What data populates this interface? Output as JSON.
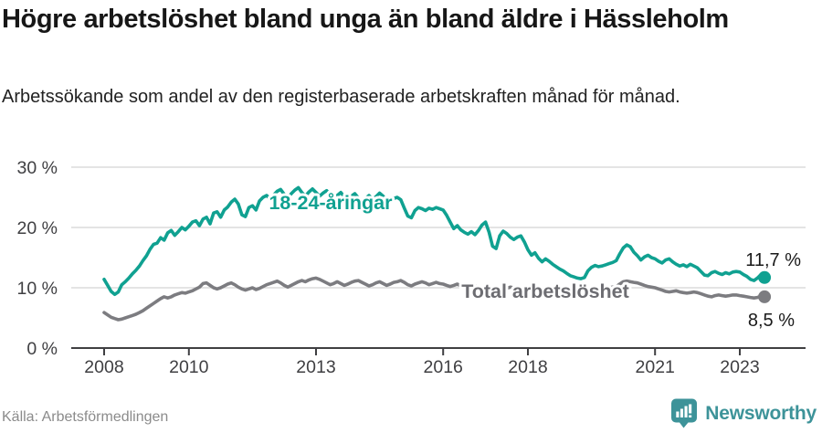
{
  "header": {
    "title": "Högre arbetslöshet bland unga än bland äldre i Hässleholm",
    "subtitle": "Arbetssökande som andel av den registerbaserade arbetskraften månad för månad."
  },
  "footer": {
    "source": "Källa: Arbetsförmedlingen",
    "brand": "Newsworthy"
  },
  "colors": {
    "young_line": "#10a191",
    "total_line": "#7c7c80",
    "total_label": "#6d6d72",
    "grid": "#dcdcdc",
    "axis": "#3f3f42",
    "tick_text": "#3f3f42",
    "end_label_text": "#1a1a1a",
    "brand": "#3d9399"
  },
  "chart_data": {
    "type": "line",
    "title": "Högre arbetslöshet bland unga än bland äldre i Hässleholm",
    "subtitle": "Arbetssökande som andel av den registerbaserade arbetskraften månad för månad.",
    "x_unit": "month",
    "x_start": "2008-01",
    "x_end": "2023-08",
    "x_tick_years": [
      2008,
      2010,
      2013,
      2016,
      2018,
      2021,
      2023
    ],
    "y_ticks": [
      0,
      10,
      20,
      30
    ],
    "y_tick_suffix": " %",
    "ylim": [
      0,
      32
    ],
    "grid": "horizontal",
    "legend_position": "inline-labels",
    "series": [
      {
        "name": "18-24-åringar",
        "color": "#10a191",
        "end_value": 11.7,
        "end_label": "11,7 %",
        "values": [
          11.4,
          10.4,
          9.4,
          8.9,
          9.3,
          10.5,
          11.0,
          11.6,
          12.3,
          12.9,
          13.6,
          14.5,
          15.3,
          16.4,
          17.2,
          17.4,
          18.3,
          17.9,
          19.1,
          19.5,
          18.7,
          19.3,
          20.0,
          19.6,
          20.2,
          20.9,
          21.1,
          20.3,
          21.4,
          21.7,
          20.6,
          22.4,
          22.6,
          21.7,
          22.9,
          23.4,
          24.2,
          24.7,
          23.9,
          22.1,
          21.8,
          23.3,
          23.6,
          22.9,
          24.4,
          25.0,
          25.3,
          24.8,
          25.4,
          26.0,
          26.3,
          25.5,
          24.9,
          25.6,
          26.2,
          26.6,
          25.8,
          25.2,
          25.9,
          26.4,
          25.8,
          25.2,
          25.7,
          26.1,
          25.4,
          24.8,
          25.3,
          25.8,
          25.1,
          24.6,
          25.2,
          25.6,
          24.9,
          24.4,
          24.8,
          25.3,
          24.7,
          25.1,
          25.7,
          25.2,
          24.6,
          24.3,
          24.8,
          25.0,
          24.6,
          23.2,
          21.9,
          21.6,
          22.8,
          23.3,
          23.1,
          22.8,
          23.2,
          23.0,
          23.3,
          23.1,
          22.9,
          22.0,
          20.9,
          19.8,
          20.3,
          19.6,
          19.2,
          18.9,
          19.3,
          18.8,
          19.5,
          20.4,
          20.9,
          19.2,
          16.9,
          16.5,
          18.6,
          19.4,
          19.0,
          18.4,
          18.0,
          18.4,
          18.6,
          17.6,
          16.3,
          15.4,
          15.8,
          14.9,
          14.3,
          14.8,
          14.4,
          13.9,
          13.5,
          13.1,
          12.8,
          12.4,
          12.0,
          11.8,
          11.6,
          11.5,
          11.7,
          12.8,
          13.4,
          13.7,
          13.5,
          13.6,
          13.8,
          14.0,
          14.2,
          14.5,
          15.6,
          16.6,
          17.1,
          16.8,
          15.9,
          15.3,
          14.6,
          15.1,
          15.4,
          15.0,
          14.8,
          14.4,
          14.1,
          14.6,
          14.8,
          14.3,
          13.9,
          13.6,
          13.8,
          13.5,
          13.9,
          13.6,
          13.3,
          12.7,
          12.1,
          12.0,
          12.5,
          12.7,
          12.4,
          12.2,
          12.5,
          12.3,
          12.6,
          12.7,
          12.6,
          12.2,
          11.9,
          11.4,
          11.2,
          11.6,
          12.2,
          11.7
        ]
      },
      {
        "name": "Total arbetslöshet",
        "color": "#7c7c80",
        "end_value": 8.5,
        "end_label": "8,5 %",
        "values": [
          5.9,
          5.5,
          5.1,
          4.9,
          4.7,
          4.8,
          5.0,
          5.2,
          5.4,
          5.6,
          5.9,
          6.2,
          6.6,
          7.0,
          7.4,
          7.8,
          8.2,
          8.5,
          8.3,
          8.5,
          8.8,
          9.0,
          9.2,
          9.1,
          9.3,
          9.5,
          9.8,
          10.1,
          10.7,
          10.8,
          10.4,
          10.0,
          9.8,
          10.0,
          10.3,
          10.6,
          10.8,
          10.5,
          10.1,
          9.8,
          9.6,
          9.8,
          10.0,
          9.7,
          9.9,
          10.2,
          10.5,
          10.7,
          10.9,
          11.1,
          10.8,
          10.4,
          10.1,
          10.4,
          10.7,
          11.0,
          11.2,
          11.0,
          11.3,
          11.5,
          11.6,
          11.4,
          11.1,
          10.8,
          10.5,
          10.7,
          11.0,
          10.7,
          10.4,
          10.6,
          10.9,
          11.1,
          11.2,
          10.9,
          10.6,
          10.3,
          10.5,
          10.8,
          11.0,
          10.7,
          10.4,
          10.6,
          10.9,
          11.0,
          11.2,
          10.9,
          10.5,
          10.3,
          10.6,
          10.8,
          11.0,
          10.8,
          10.5,
          10.7,
          10.9,
          10.7,
          10.6,
          10.4,
          10.2,
          10.4,
          10.6,
          10.3,
          10.1,
          9.9,
          10.1,
          10.3,
          10.1,
          9.9,
          9.7,
          9.6,
          9.7,
          9.9,
          10.0,
          9.8,
          9.9,
          10.1,
          10.0,
          9.8,
          9.9,
          10.0,
          10.0,
          9.9,
          9.8,
          9.7,
          9.6,
          9.7,
          9.8,
          9.7,
          9.6,
          9.5,
          9.6,
          9.7,
          9.7,
          9.6,
          9.5,
          9.4,
          9.5,
          9.7,
          9.9,
          9.8,
          9.7,
          9.8,
          9.9,
          10.0,
          10.1,
          10.2,
          10.6,
          11.0,
          11.1,
          11.0,
          10.9,
          10.8,
          10.6,
          10.4,
          10.2,
          10.1,
          10.0,
          9.8,
          9.6,
          9.4,
          9.3,
          9.4,
          9.5,
          9.3,
          9.2,
          9.1,
          9.2,
          9.3,
          9.2,
          9.0,
          8.8,
          8.6,
          8.5,
          8.7,
          8.8,
          8.7,
          8.6,
          8.7,
          8.8,
          8.8,
          8.7,
          8.6,
          8.5,
          8.4,
          8.3,
          8.4,
          8.6,
          8.5
        ]
      }
    ]
  }
}
